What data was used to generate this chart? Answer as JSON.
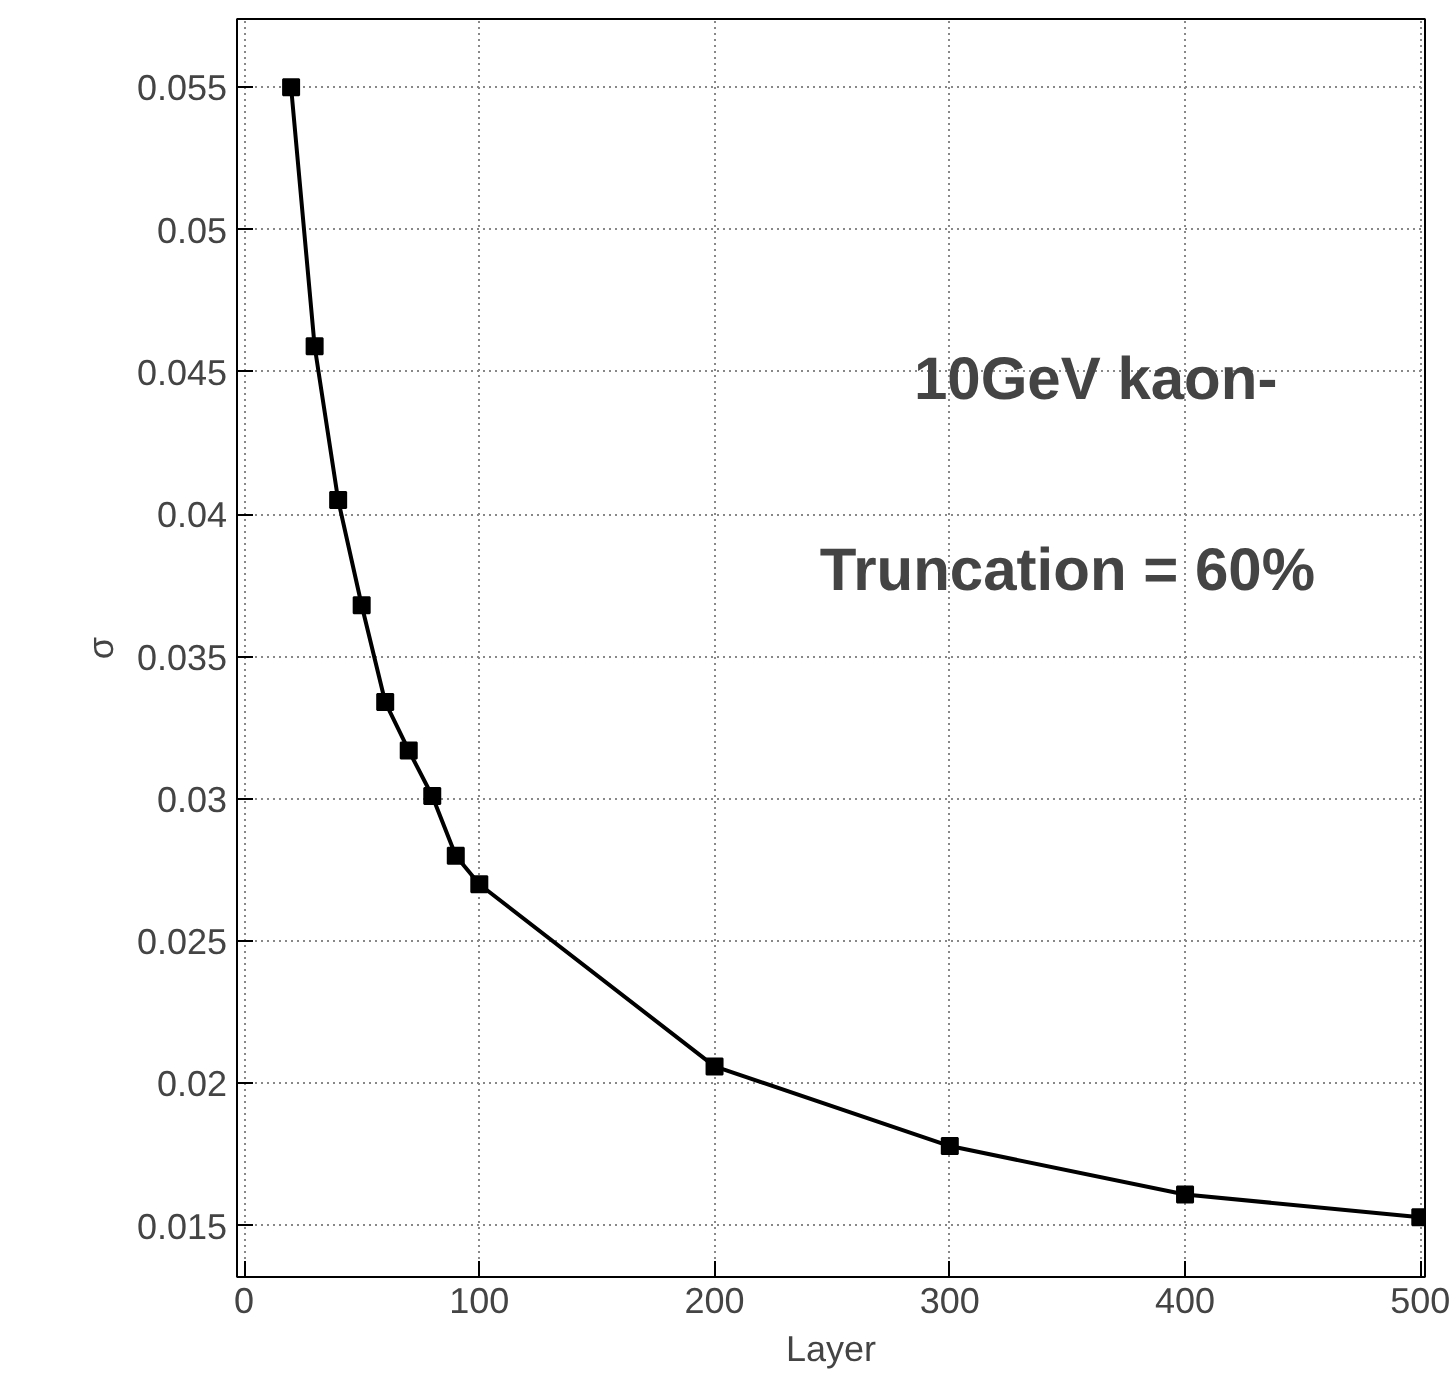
{
  "chart_data": {
    "type": "line",
    "xlabel": "Layer",
    "ylabel": "σ",
    "x": [
      20,
      30,
      40,
      50,
      60,
      70,
      80,
      90,
      100,
      200,
      300,
      400,
      500
    ],
    "series": [
      {
        "color": "#000000",
        "values": [
          0.055,
          0.0459,
          0.0405,
          0.0368,
          0.0334,
          0.0317,
          0.0301,
          0.028,
          0.027,
          0.0206,
          0.0178,
          0.0161,
          0.0153
        ]
      }
    ],
    "xlim": [
      -3,
      502
    ],
    "ylim": [
      0.0132,
      0.0574
    ],
    "xticks": [
      0,
      100,
      200,
      300,
      400,
      500
    ],
    "yticks": [
      0.015,
      0.02,
      0.025,
      0.03,
      0.035,
      0.04,
      0.045,
      0.05,
      0.055
    ],
    "grid": true,
    "marker": "square",
    "line_style": "solid",
    "annotations": [
      "10GeV kaon-",
      "Truncation = 60%"
    ]
  }
}
